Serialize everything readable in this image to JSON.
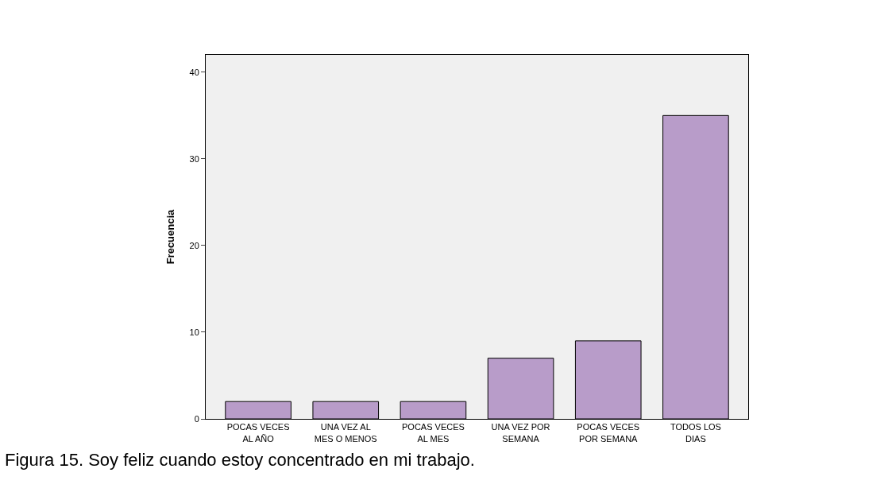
{
  "chart_data": {
    "type": "bar",
    "categories": [
      "POCAS VECES\nAL AÑO",
      "UNA VEZ AL\nMES O MENOS",
      "POCAS VECES\nAL MES",
      "UNA VEZ POR\nSEMANA",
      "POCAS VECES\nPOR SEMANA",
      "TODOS LOS\nDIAS"
    ],
    "values": [
      2,
      2,
      2,
      7,
      9,
      35
    ],
    "color": "#b89cc9",
    "ylabel": "Frecuencia",
    "ylim": [
      0,
      42
    ],
    "yticks": [
      0,
      10,
      20,
      30,
      40
    ],
    "grid": false,
    "legend": false,
    "annotations": [
      "Figura 15. Soy feliz cuando estoy concentrado en mi trabajo."
    ]
  }
}
